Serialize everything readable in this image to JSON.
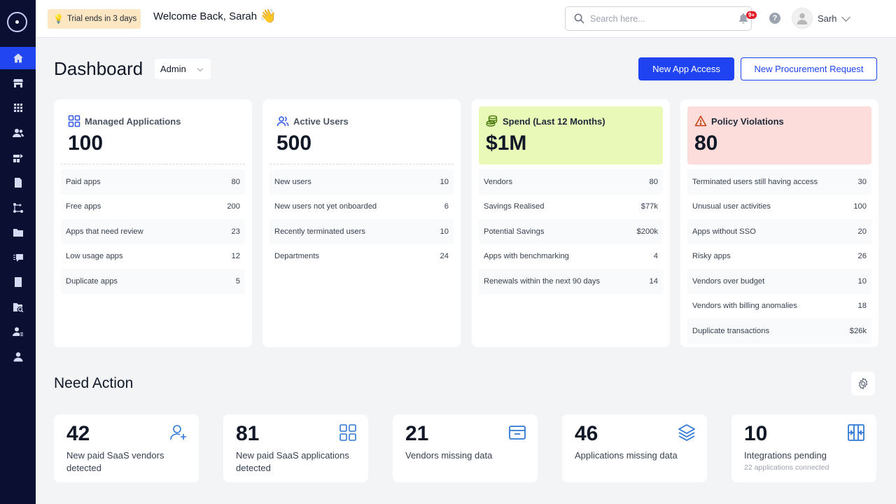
{
  "topbar": {
    "trial_label": "Trial ends in 3 days",
    "welcome": "Welcome Back, Sarah",
    "wave": "👋",
    "search_placeholder": "Search here...",
    "notif_badge": "9+",
    "help_icon": "?",
    "user_name": "Sarh"
  },
  "header": {
    "title": "Dashboard",
    "role": "Admin",
    "new_app_access": "New App Access",
    "new_procurement": "New Procurement Request"
  },
  "cards": [
    {
      "title": "Managed Applications",
      "value": "100",
      "icon": "grid-icon",
      "rows": [
        {
          "label": "Paid apps",
          "value": "80"
        },
        {
          "label": "Free apps",
          "value": "200"
        },
        {
          "label": "Apps that need review",
          "value": "23"
        },
        {
          "label": "Low usage apps",
          "value": "12"
        },
        {
          "label": "Duplicate apps",
          "value": "5"
        }
      ]
    },
    {
      "title": "Active Users",
      "value": "500",
      "icon": "users-icon",
      "rows": [
        {
          "label": "New users",
          "value": "10"
        },
        {
          "label": "New users not yet onboarded",
          "value": "6"
        },
        {
          "label": "Recently terminated users",
          "value": "10"
        },
        {
          "label": "Departments",
          "value": "24"
        }
      ]
    },
    {
      "title": "Spend (Last 12 Months)",
      "value": "$1M",
      "icon": "coins-icon",
      "accent": "#e9f9b8",
      "rows": [
        {
          "label": "Vendors",
          "value": "80"
        },
        {
          "label": "Savings Realised",
          "value": "$77k"
        },
        {
          "label": "Potential Savings",
          "value": "$200k"
        },
        {
          "label": "Apps with benchmarking",
          "value": "4"
        },
        {
          "label": "Renewals within the next 90 days",
          "value": "14"
        }
      ]
    },
    {
      "title": "Policy Violations",
      "value": "80",
      "icon": "warning-icon",
      "accent": "#fddcdc",
      "rows": [
        {
          "label": "Terminated users still having access",
          "value": "30"
        },
        {
          "label": "Unusual user activities",
          "value": "100"
        },
        {
          "label": "Apps without SSO",
          "value": "20"
        },
        {
          "label": "Risky apps",
          "value": "26"
        },
        {
          "label": "Vendors over budget",
          "value": "10"
        },
        {
          "label": "Vendors with billing anomalies",
          "value": "18"
        },
        {
          "label": "Duplicate transactions",
          "value": "$26k"
        }
      ]
    }
  ],
  "need_action": {
    "title": "Need Action",
    "items": [
      {
        "value": "42",
        "label": "New paid SaaS vendors detected",
        "icon": "add-user-icon"
      },
      {
        "value": "81",
        "label": "New paid SaaS applications detected",
        "icon": "grid-icon"
      },
      {
        "value": "21",
        "label": "Vendors missing data",
        "icon": "window-icon"
      },
      {
        "value": "46",
        "label": "Applications missing data",
        "icon": "layers-icon"
      },
      {
        "value": "10",
        "label": "Integrations pending",
        "sub": "22 applications connected",
        "icon": "integrations-icon"
      }
    ]
  },
  "colors": {
    "sidebar": "#0b1033",
    "primary": "#1f43f0",
    "spend_accent": "#e9f9b8",
    "violations_accent": "#fddcdc"
  }
}
